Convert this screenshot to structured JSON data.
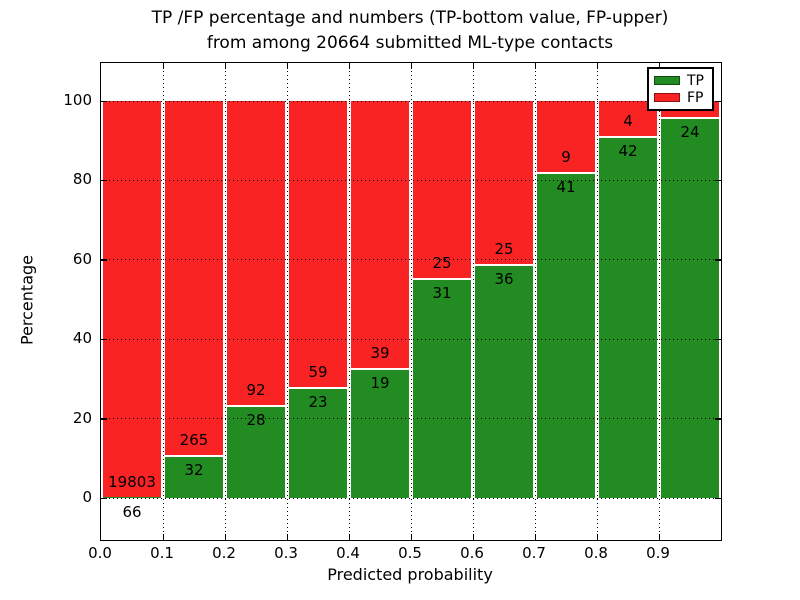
{
  "title": {
    "line1": "TP /FP percentage and numbers (TP-bottom value, FP-upper)",
    "line2": "from among 20664 submitted ML-type contacts"
  },
  "axes": {
    "xlabel": "Predicted probability",
    "ylabel": "Percentage",
    "xtick_labels": [
      "0.0",
      "0.1",
      "0.2",
      "0.3",
      "0.4",
      "0.5",
      "0.6",
      "0.7",
      "0.8",
      "0.9"
    ],
    "ytick_labels": [
      "0",
      "20",
      "40",
      "60",
      "80",
      "100"
    ],
    "ytick_values": [
      0,
      20,
      40,
      60,
      80,
      100
    ],
    "xlim": [
      0.0,
      1.0
    ],
    "ylim": [
      -10.6,
      110.1
    ],
    "grid_style": "dotted"
  },
  "legend": {
    "position": "upper right",
    "entries": [
      {
        "label": "TP",
        "color": "#228b22"
      },
      {
        "label": "FP",
        "color": "#f92323"
      }
    ]
  },
  "colors": {
    "tp": "#228b22",
    "fp": "#f92323",
    "grid": "#000000",
    "background": "#ffffff"
  },
  "chart_data": {
    "type": "bar",
    "stacked": true,
    "unit": "percent of bin total (bars sum to 100%)",
    "x_bin_width": 0.1,
    "bins": [
      "0.0-0.1",
      "0.1-0.2",
      "0.2-0.3",
      "0.3-0.4",
      "0.4-0.5",
      "0.5-0.6",
      "0.6-0.7",
      "0.7-0.8",
      "0.8-0.9",
      "0.9-1.0"
    ],
    "series": [
      {
        "name": "TP",
        "color": "#228b22",
        "counts": [
          66,
          32,
          28,
          23,
          19,
          31,
          36,
          41,
          42,
          24
        ],
        "percent": [
          0.33,
          10.77,
          23.33,
          28.05,
          32.76,
          55.36,
          59.02,
          82.0,
          91.3,
          96.0
        ]
      },
      {
        "name": "FP",
        "color": "#f92323",
        "counts": [
          19803,
          265,
          92,
          59,
          39,
          25,
          25,
          9,
          4,
          null
        ],
        "percent": [
          99.67,
          89.23,
          76.67,
          71.95,
          67.24,
          44.64,
          40.98,
          18.0,
          8.7,
          4.0
        ]
      }
    ],
    "total_submitted": "20664",
    "title": "TP /FP percentage and numbers (TP-bottom value, FP-upper) from among 20664 submitted ML-type contacts",
    "xlabel": "Predicted probability",
    "ylabel": "Percentage"
  }
}
